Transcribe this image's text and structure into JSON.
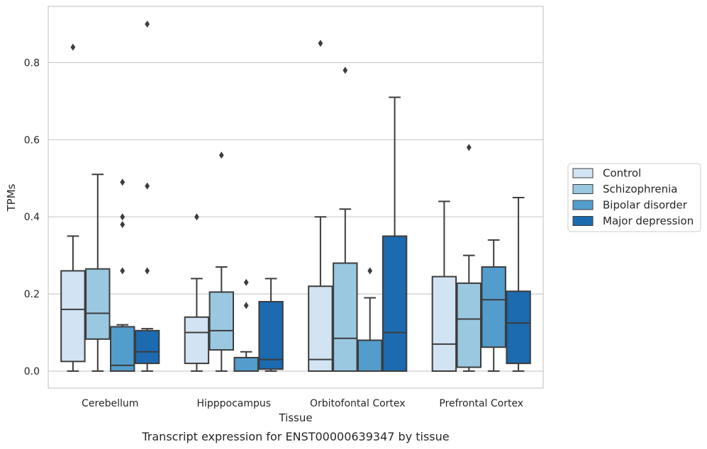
{
  "chart_data": {
    "type": "box",
    "title": "",
    "caption": "Transcript expression for ENST00000639347 by tissue",
    "xlabel": "Tissue",
    "ylabel": "TPMs",
    "ylim": [
      -0.045,
      0.945
    ],
    "yticks": [
      0.0,
      0.2,
      0.4,
      0.6,
      0.8
    ],
    "ytick_labels": [
      "0.0",
      "0.2",
      "0.4",
      "0.6",
      "0.8"
    ],
    "grid": "horizontal",
    "legend_position": "right",
    "categories": [
      "Cerebellum",
      "Hipppocampus",
      "Orbitofontal Cortex",
      "Prefrontal Cortex"
    ],
    "series": [
      {
        "name": "Control",
        "color": "#d2e3f3",
        "boxes": [
          {
            "q1": 0.025,
            "median": 0.16,
            "q3": 0.26,
            "whisker_low": 0.0,
            "whisker_high": 0.35,
            "outliers": [
              0.84
            ]
          },
          {
            "q1": 0.02,
            "median": 0.1,
            "q3": 0.14,
            "whisker_low": 0.0,
            "whisker_high": 0.24,
            "outliers": [
              0.4
            ]
          },
          {
            "q1": 0.0,
            "median": 0.03,
            "q3": 0.22,
            "whisker_low": 0.0,
            "whisker_high": 0.4,
            "outliers": [
              0.85
            ]
          },
          {
            "q1": 0.0,
            "median": 0.07,
            "q3": 0.245,
            "whisker_low": 0.0,
            "whisker_high": 0.44,
            "outliers": []
          }
        ]
      },
      {
        "name": "Schizophrenia",
        "color": "#9ac8e0",
        "boxes": [
          {
            "q1": 0.083,
            "median": 0.15,
            "q3": 0.265,
            "whisker_low": 0.0,
            "whisker_high": 0.51,
            "outliers": []
          },
          {
            "q1": 0.055,
            "median": 0.105,
            "q3": 0.205,
            "whisker_low": 0.0,
            "whisker_high": 0.27,
            "outliers": [
              0.56
            ]
          },
          {
            "q1": 0.0,
            "median": 0.085,
            "q3": 0.28,
            "whisker_low": 0.0,
            "whisker_high": 0.42,
            "outliers": [
              0.78
            ]
          },
          {
            "q1": 0.01,
            "median": 0.135,
            "q3": 0.228,
            "whisker_low": 0.0,
            "whisker_high": 0.3,
            "outliers": [
              0.58
            ]
          }
        ]
      },
      {
        "name": "Bipolar disorder",
        "color": "#529dcc",
        "boxes": [
          {
            "q1": 0.0,
            "median": 0.015,
            "q3": 0.115,
            "whisker_low": 0.0,
            "whisker_high": 0.12,
            "outliers": [
              0.26,
              0.38,
              0.4,
              0.49
            ]
          },
          {
            "q1": 0.0,
            "median": 0.0,
            "q3": 0.035,
            "whisker_low": 0.0,
            "whisker_high": 0.05,
            "outliers": [
              0.17,
              0.23
            ]
          },
          {
            "q1": 0.0,
            "median": 0.0,
            "q3": 0.08,
            "whisker_low": 0.0,
            "whisker_high": 0.19,
            "outliers": [
              0.26
            ]
          },
          {
            "q1": 0.062,
            "median": 0.185,
            "q3": 0.27,
            "whisker_low": 0.0,
            "whisker_high": 0.34,
            "outliers": []
          }
        ]
      },
      {
        "name": "Major depression",
        "color": "#1c6aaf",
        "boxes": [
          {
            "q1": 0.02,
            "median": 0.05,
            "q3": 0.105,
            "whisker_low": 0.0,
            "whisker_high": 0.11,
            "outliers": [
              0.26,
              0.48,
              0.9
            ]
          },
          {
            "q1": 0.005,
            "median": 0.03,
            "q3": 0.18,
            "whisker_low": 0.0,
            "whisker_high": 0.24,
            "outliers": []
          },
          {
            "q1": 0.0,
            "median": 0.1,
            "q3": 0.35,
            "whisker_low": 0.0,
            "whisker_high": 0.71,
            "outliers": []
          },
          {
            "q1": 0.02,
            "median": 0.125,
            "q3": 0.207,
            "whisker_low": 0.0,
            "whisker_high": 0.45,
            "outliers": []
          }
        ]
      }
    ]
  },
  "colors": {
    "background": "#ffffff",
    "grid": "#cccccc",
    "frame": "#cccccc",
    "box_edge": "#3d3d3d",
    "text": "#262626"
  }
}
